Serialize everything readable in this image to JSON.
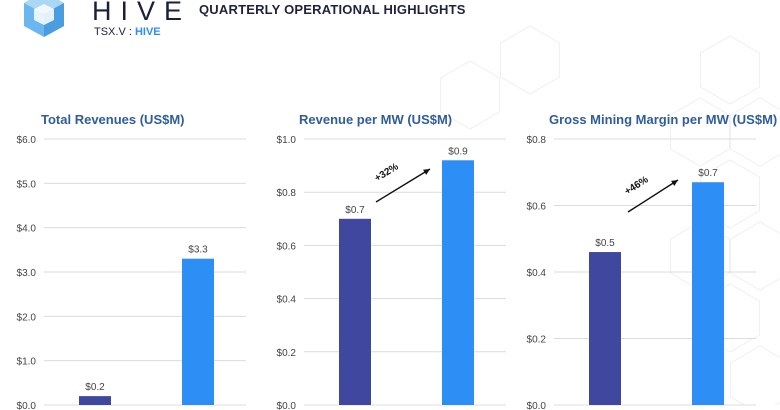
{
  "header": {
    "brand": "HIVE",
    "ticker_prefix": "TSX.V : ",
    "ticker_symbol": "HIVE",
    "headline": "QUARTERLY OPERATIONAL HIGHLIGHTS"
  },
  "colors": {
    "bar_dark": "#3f479f",
    "bar_light": "#2d8ff5",
    "title": "#2f5d9e",
    "grid": "#dcdcdc",
    "text": "#444444",
    "logo": "#69b7ee"
  },
  "chart_data": [
    {
      "type": "bar",
      "title": "Total Revenues (US$M)",
      "categories": [
        "",
        ""
      ],
      "values": [
        0.2,
        3.3
      ],
      "value_labels": [
        "$0.2",
        "$3.3"
      ],
      "ylim": [
        0,
        6
      ],
      "yticks": [
        0,
        1,
        2,
        3,
        4,
        5,
        6
      ],
      "ytick_labels": [
        "$0.0",
        "$1.0",
        "$2.0",
        "$3.0",
        "$4.0",
        "$5.0",
        "$6.0"
      ],
      "grid": true,
      "growth_label": ""
    },
    {
      "type": "bar",
      "title": "Revenue per MW (US$M)",
      "categories": [
        "",
        ""
      ],
      "values": [
        0.7,
        0.92
      ],
      "value_labels": [
        "$0.7",
        "$0.9"
      ],
      "ylim": [
        0,
        1
      ],
      "yticks": [
        0,
        0.2,
        0.4,
        0.6,
        0.8,
        1.0
      ],
      "ytick_labels": [
        "$0.0",
        "$0.2",
        "$0.4",
        "$0.6",
        "$0.8",
        "$1.0"
      ],
      "grid": true,
      "growth_label": "+32%"
    },
    {
      "type": "bar",
      "title": "Gross Mining Margin per MW (US$M)",
      "categories": [
        "",
        ""
      ],
      "values": [
        0.46,
        0.67
      ],
      "value_labels": [
        "$0.5",
        "$0.7"
      ],
      "ylim": [
        0,
        0.8
      ],
      "yticks": [
        0,
        0.2,
        0.4,
        0.6,
        0.8
      ],
      "ytick_labels": [
        "$0.0",
        "$0.2",
        "$0.4",
        "$0.6",
        "$0.8"
      ],
      "grid": true,
      "growth_label": "+46%"
    }
  ]
}
